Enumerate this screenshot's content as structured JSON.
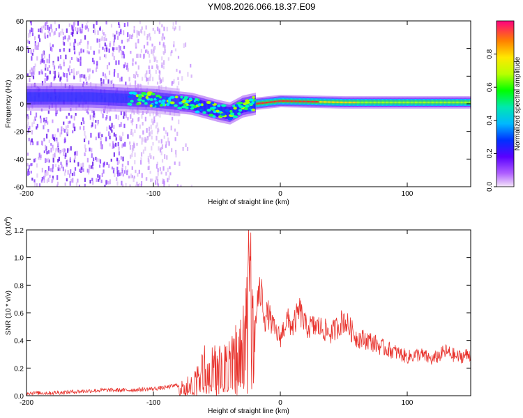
{
  "title": "YM08.2026.066.18.37.E09",
  "chart_data": [
    {
      "type": "heatmap",
      "name": "spectrogram",
      "xlabel": "Height of straight line (km)",
      "ylabel": "Frequency (Hz)",
      "xlim": [
        -200,
        150
      ],
      "ylim": [
        -60,
        60
      ],
      "xticks": [
        -200,
        -100,
        0,
        100
      ],
      "yticks": [
        -60,
        -40,
        -20,
        0,
        20,
        40,
        60
      ],
      "colorbar": {
        "label": "Normalized spectral amplitude",
        "range": [
          0.0,
          1.0
        ],
        "ticks": [
          0.0,
          0.2,
          0.4,
          0.6,
          0.8
        ]
      },
      "ridge_frequency": [
        {
          "x": -200,
          "y": 5
        },
        {
          "x": -150,
          "y": 5
        },
        {
          "x": -100,
          "y": 3
        },
        {
          "x": -70,
          "y": 0
        },
        {
          "x": -50,
          "y": -5
        },
        {
          "x": -40,
          "y": -7
        },
        {
          "x": -30,
          "y": -2
        },
        {
          "x": -20,
          "y": 0
        },
        {
          "x": 0,
          "y": 2
        },
        {
          "x": 50,
          "y": 1
        },
        {
          "x": 100,
          "y": 1
        },
        {
          "x": 150,
          "y": 1
        }
      ]
    },
    {
      "type": "line",
      "name": "snr",
      "xlabel": "Height of straight line (km)",
      "ylabel": "SNR (10 * v/v)",
      "exponent_label": "(x10",
      "exponent_power": "4",
      "exponent_close": ")",
      "xlim": [
        -200,
        150
      ],
      "ylim": [
        0.0,
        1.2
      ],
      "xticks": [
        -200,
        -100,
        0,
        100
      ],
      "yticks": [
        0.0,
        0.2,
        0.4,
        0.6,
        0.8,
        1.0,
        1.2
      ],
      "color": "#e8312b",
      "series": [
        {
          "name": "SNR",
          "x": [
            -200,
            -180,
            -160,
            -140,
            -120,
            -100,
            -90,
            -80,
            -70,
            -65,
            -60,
            -55,
            -50,
            -45,
            -40,
            -35,
            -30,
            -27,
            -25,
            -22,
            -20,
            -18,
            -15,
            -12,
            -10,
            -5,
            0,
            5,
            10,
            15,
            20,
            30,
            40,
            50,
            60,
            70,
            80,
            90,
            100,
            110,
            120,
            130,
            140,
            150
          ],
          "values": [
            0.02,
            0.02,
            0.03,
            0.04,
            0.04,
            0.05,
            0.06,
            0.08,
            0.12,
            0.18,
            0.28,
            0.33,
            0.3,
            0.36,
            0.3,
            0.4,
            0.55,
            0.75,
            1.2,
            0.85,
            0.45,
            0.7,
            0.75,
            0.55,
            0.6,
            0.48,
            0.42,
            0.55,
            0.5,
            0.62,
            0.5,
            0.5,
            0.45,
            0.55,
            0.42,
            0.4,
            0.35,
            0.32,
            0.28,
            0.3,
            0.26,
            0.32,
            0.28,
            0.3
          ]
        }
      ]
    }
  ]
}
